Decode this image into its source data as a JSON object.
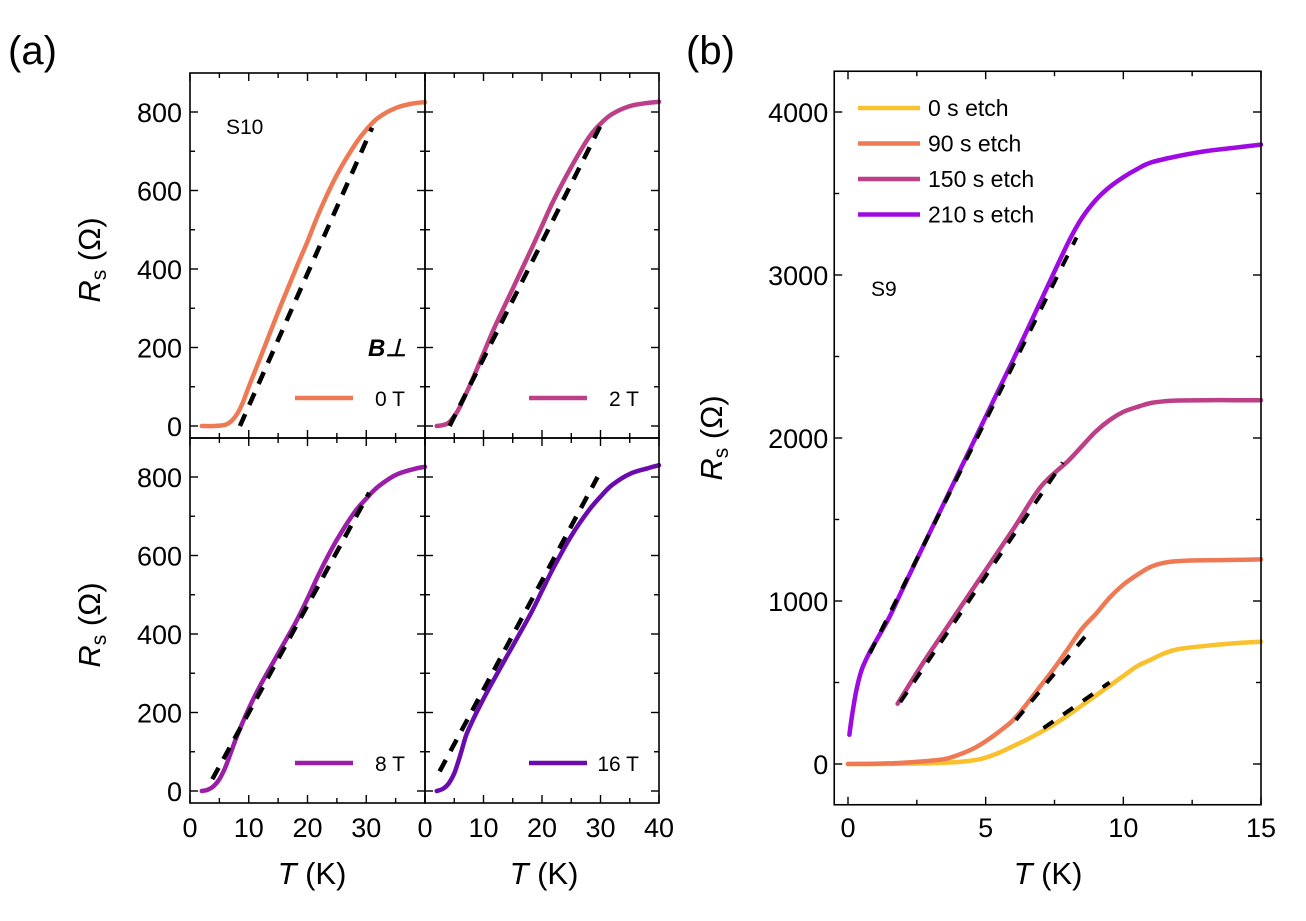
{
  "chart_data": [
    {
      "id": "a",
      "panel_label": "(a)",
      "type": "line",
      "layout": "2x2 grid sharing axes",
      "sample_label": "S10",
      "legend_title": "B⊥",
      "xlabel_italic": "T",
      "xlabel_unit": " (K)",
      "ylabel_italic": "R",
      "ylabel_sub": "s",
      "ylabel_unit": " (Ω)",
      "xlim": [
        0,
        40
      ],
      "ylim": [
        -30,
        800
      ],
      "xticks": [
        0,
        10,
        20,
        30
      ],
      "xticks_right": [
        0,
        10,
        20,
        30,
        40
      ],
      "yticks": [
        0,
        200,
        400,
        600,
        800
      ],
      "grid": false,
      "fit_style": "black dashed line",
      "subplots": [
        {
          "name": "0 T",
          "color": "#EE7A55",
          "legend_position": "bottom-right",
          "x": [
            2,
            4,
            6,
            7,
            8,
            9,
            10,
            12,
            15,
            18,
            20,
            22,
            25,
            28,
            30,
            32,
            35,
            38,
            40
          ],
          "y": [
            0,
            0,
            3,
            12,
            30,
            60,
            100,
            175,
            290,
            400,
            470,
            545,
            640,
            715,
            755,
            785,
            810,
            822,
            825
          ],
          "fit": {
            "x": [
              8.5,
              31
            ],
            "y": [
              0,
              760
            ]
          }
        },
        {
          "name": "2 T",
          "color": "#BC3F87",
          "legend_position": "bottom-right",
          "x": [
            2,
            3,
            4,
            5,
            6,
            8,
            10,
            12,
            15,
            18,
            20,
            22,
            25,
            28,
            30,
            32,
            35,
            38,
            40
          ],
          "y": [
            0,
            2,
            8,
            25,
            50,
            115,
            185,
            255,
            350,
            445,
            510,
            575,
            660,
            735,
            770,
            795,
            815,
            823,
            826
          ],
          "fit": {
            "x": [
              4.2,
              30.5
            ],
            "y": [
              0,
              780
            ]
          }
        },
        {
          "name": "8 T",
          "color": "#9C1DA8",
          "legend_position": "bottom-right",
          "x": [
            2,
            3,
            4,
            5,
            6,
            7,
            8,
            10,
            12,
            15,
            18,
            20,
            22,
            25,
            28,
            30,
            32,
            35,
            38,
            40
          ],
          "y": [
            0,
            3,
            12,
            30,
            60,
            100,
            140,
            210,
            270,
            350,
            430,
            490,
            555,
            640,
            710,
            745,
            775,
            805,
            820,
            826
          ],
          "fit": {
            "x": [
              3.8,
              30.5
            ],
            "y": [
              30,
              760
            ]
          }
        },
        {
          "name": "16 T",
          "color": "#6A0BAE",
          "legend_position": "bottom-right",
          "x": [
            2,
            3,
            4,
            5,
            6,
            7,
            8,
            10,
            12,
            15,
            18,
            20,
            22,
            25,
            28,
            30,
            32,
            35,
            38,
            40
          ],
          "y": [
            0,
            5,
            18,
            45,
            90,
            140,
            175,
            235,
            290,
            370,
            450,
            510,
            570,
            650,
            715,
            750,
            780,
            808,
            822,
            830
          ],
          "fit": {
            "x": [
              2.5,
              29.5
            ],
            "y": [
              50,
              800
            ]
          }
        }
      ]
    },
    {
      "id": "b",
      "panel_label": "(b)",
      "type": "line",
      "sample_label": "S9",
      "xlabel_italic": "T",
      "xlabel_unit": " (K)",
      "ylabel_italic": "R",
      "ylabel_sub": "s",
      "ylabel_unit": " (Ω)",
      "xlim": [
        -0.5,
        15
      ],
      "ylim": [
        -250,
        4250
      ],
      "xticks": [
        0,
        5,
        10,
        15
      ],
      "yticks": [
        0,
        1000,
        2000,
        3000,
        4000
      ],
      "grid": false,
      "legend_position": "top-left",
      "fit_style": "black dashed line",
      "series": [
        {
          "name": "0 s etch",
          "color": "#F8C12D",
          "x": [
            0,
            1,
            2,
            3,
            4,
            4.8,
            5.5,
            6,
            6.5,
            7,
            7.5,
            8,
            8.5,
            9,
            9.5,
            10,
            10.5,
            11,
            11.5,
            12,
            13,
            14,
            15
          ],
          "y": [
            0,
            0,
            2,
            5,
            12,
            30,
            70,
            110,
            150,
            195,
            245,
            300,
            360,
            420,
            480,
            540,
            600,
            640,
            680,
            705,
            725,
            740,
            750
          ],
          "fit": {
            "x": [
              7.1,
              9.5
            ],
            "y": [
              220,
              500
            ]
          }
        },
        {
          "name": "90 s etch",
          "color": "#EE7A55",
          "x": [
            0,
            1,
            2,
            3,
            3.5,
            4,
            4.5,
            5,
            5.5,
            6,
            6.5,
            7,
            7.5,
            8,
            8.5,
            9,
            9.5,
            10,
            10.5,
            11,
            11.5,
            12,
            13,
            14,
            15
          ],
          "y": [
            0,
            2,
            8,
            20,
            30,
            55,
            90,
            140,
            200,
            270,
            370,
            480,
            590,
            710,
            830,
            920,
            1020,
            1100,
            1160,
            1210,
            1235,
            1245,
            1250,
            1252,
            1255
          ],
          "fit": {
            "x": [
              6.1,
              8.7
            ],
            "y": [
              270,
              800
            ]
          }
        },
        {
          "name": "150 s etch",
          "color": "#BC3F87",
          "x": [
            1.8,
            2.5,
            3,
            4,
            5,
            6,
            7,
            8,
            8.5,
            9,
            9.5,
            10,
            10.5,
            11,
            11.5,
            12,
            13,
            14,
            15
          ],
          "y": [
            370,
            560,
            690,
            940,
            1190,
            1440,
            1700,
            1860,
            1950,
            2040,
            2110,
            2160,
            2190,
            2215,
            2225,
            2230,
            2232,
            2232,
            2232
          ],
          "fit": {
            "x": [
              1.9,
              7.8
            ],
            "y": [
              380,
              1850
            ]
          }
        },
        {
          "name": "210 s etch",
          "color": "#9D0AE2",
          "x": [
            0.05,
            0.15,
            0.3,
            0.5,
            0.8,
            1,
            1.5,
            2,
            3,
            4,
            5,
            6,
            7,
            8,
            8.5,
            9,
            9.5,
            10,
            10.5,
            11,
            12,
            13,
            14,
            15
          ],
          "y": [
            180,
            300,
            450,
            580,
            690,
            750,
            900,
            1080,
            1430,
            1780,
            2130,
            2480,
            2840,
            3200,
            3350,
            3460,
            3540,
            3600,
            3650,
            3690,
            3730,
            3760,
            3780,
            3800
          ],
          "fit": {
            "x": [
              0.8,
              8.3
            ],
            "y": [
              680,
              3230
            ]
          }
        }
      ]
    }
  ]
}
